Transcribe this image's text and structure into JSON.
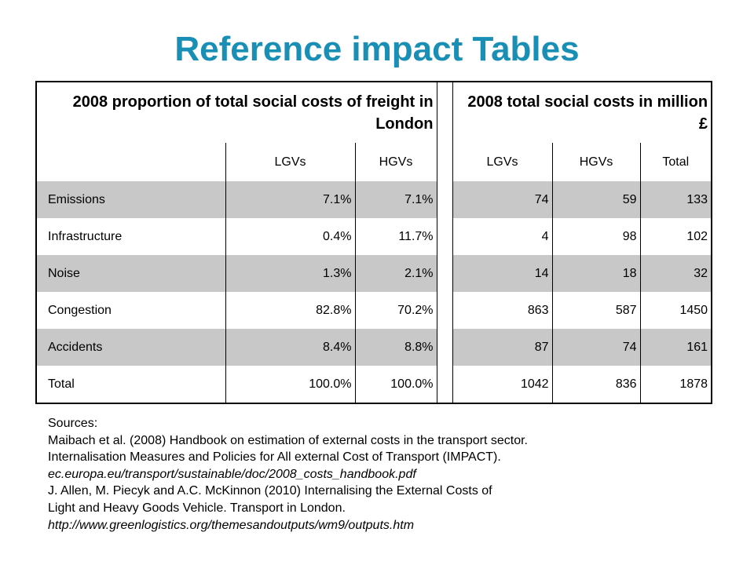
{
  "title": "Reference impact Tables",
  "table": {
    "group_left": "2008 proportion of total social costs of freight in London",
    "group_right": "2008 total social costs in million £",
    "sub_headers": [
      "LGVs",
      "HGVs",
      "LGVs",
      "HGVs",
      "Total"
    ],
    "rows": [
      {
        "label": "Emissions",
        "p_lgv": "7.1%",
        "p_hgv": "7.1%",
        "c_lgv": "74",
        "c_hgv": "59",
        "c_total": "133"
      },
      {
        "label": "Infrastructure",
        "p_lgv": "0.4%",
        "p_hgv": "11.7%",
        "c_lgv": "4",
        "c_hgv": "98",
        "c_total": "102"
      },
      {
        "label": "Noise",
        "p_lgv": "1.3%",
        "p_hgv": "2.1%",
        "c_lgv": "14",
        "c_hgv": "18",
        "c_total": "32"
      },
      {
        "label": "Congestion",
        "p_lgv": "82.8%",
        "p_hgv": "70.2%",
        "c_lgv": "863",
        "c_hgv": "587",
        "c_total": "1450"
      },
      {
        "label": "Accidents",
        "p_lgv": "8.4%",
        "p_hgv": "8.8%",
        "c_lgv": "87",
        "c_hgv": "74",
        "c_total": "161"
      },
      {
        "label": "Total",
        "p_lgv": "100.0%",
        "p_hgv": "100.0%",
        "c_lgv": "1042",
        "c_hgv": "836",
        "c_total": "1878"
      }
    ]
  },
  "sources": {
    "heading": "Sources:",
    "line1": "Maibach et al. (2008) Handbook on estimation of external costs in the transport sector.",
    "line2": "Internalisation Measures and Policies for All external Cost of Transport (IMPACT).",
    "line3": "ec.europa.eu/transport/sustainable/doc/2008_costs_handbook.pdf",
    "line4": "J. Allen, M. Piecyk and A.C. McKinnon (2010) Internalising the External Costs of",
    "line5": "Light and Heavy Goods Vehicle. Transport in London.",
    "line6": "http://www.greenlogistics.org/themesandoutputs/wm9/outputs.htm"
  },
  "colors": {
    "title": "#1a8fb5",
    "row_shade": "#c8c8c8"
  }
}
